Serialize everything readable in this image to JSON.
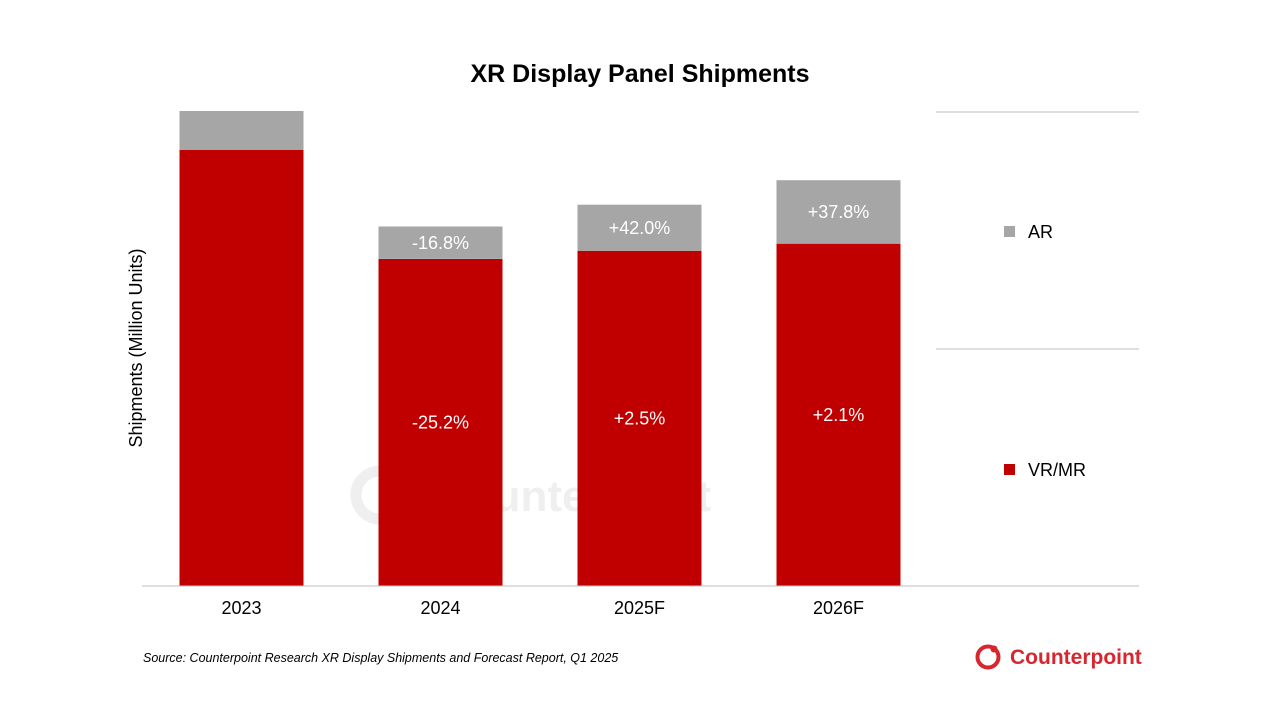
{
  "chart_data": {
    "type": "bar",
    "stacked": true,
    "title": "XR Display Panel Shipments",
    "ylabel": "Shipments (Million Units)",
    "xlabel": "",
    "categories": [
      "2023",
      "2024",
      "2025F",
      "2026F"
    ],
    "series": [
      {
        "name": "VR/MR",
        "color": "#C00000",
        "values": [
          16.0,
          12.0,
          12.3,
          12.56
        ],
        "labels": [
          "",
          "-25.2%",
          "+2.5%",
          "+2.1%"
        ]
      },
      {
        "name": "AR",
        "color": "#A6A6A6",
        "values": [
          1.43,
          1.19,
          1.69,
          2.33
        ],
        "labels": [
          "",
          "-16.8%",
          "+42.0%",
          "+37.8%"
        ]
      }
    ],
    "ylim": [
      0,
      17.43
    ],
    "y_axis_visible": false,
    "grid": false,
    "legend_position": "right",
    "legend_order": [
      "AR",
      "VR/MR"
    ]
  },
  "source": "Source: Counterpoint Research XR Display Shipments and Forecast Report, Q1 2025",
  "brand": {
    "name": "Counterpoint",
    "color": "#D7262D",
    "watermark_color": "#efefef"
  }
}
